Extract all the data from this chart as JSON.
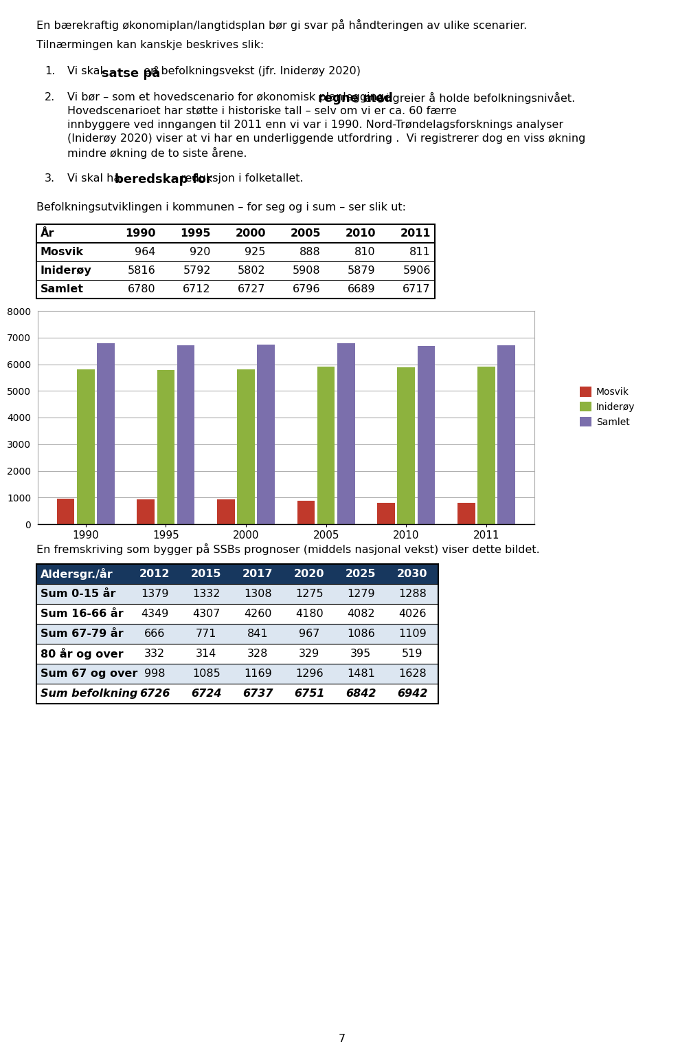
{
  "page_title_line1": "En bærekraftig økonomiplan/langtidsplan bør gi svar på håndteringen av ulike scenarier.",
  "page_title_line2": "Tilnærmingen kan kanskje beskrives slik:",
  "item1_pre": "Vi skal ",
  "item1_bold": "satse på",
  "item1_post": " en befolkningsvekst (jfr. Iniderøy 2020)",
  "item1_post_real": " en befolkningsvekst (jfr. Iniderøy 2020)",
  "item2_pre": "Vi bør – som et hovedscenario for økonomisk planlegging - ",
  "item2_bold": "regne med",
  "item2_line1_post": " at vi greier å holde befolkningssnivået.",
  "item2_line2": "befolkningsnivået. Hovedscenarioet har støtte i historiske tall – selv om vi er ca. 60 færre",
  "item2_line3": "innbyggere ved inngangen til 2011 enn vi var i 1990. Nord-Trøndelagsforsknings analyser",
  "item2_line4": "(Iniderøy 2020) viser at vi har en underliggende utfordring .  Vi registrerer dog en viss økning",
  "item2_line5": "mindre økning de to siste årene.",
  "item3_pre": "Vi skal ha ",
  "item3_bold": "beredskap for",
  "item3_post": " reduksjon i folketallet.",
  "mid_text": "Befolkningsutviklingen i kommunen – for seg og i sum – ser slik ut:",
  "table1_headers": [
    "År",
    "1990",
    "1995",
    "2000",
    "2005",
    "2010",
    "2011"
  ],
  "table1_rows": [
    [
      "Mosvik",
      "964",
      "920",
      "925",
      "888",
      "810",
      "811"
    ],
    [
      "Iniderøy",
      "5816",
      "5792",
      "5802",
      "5908",
      "5879",
      "5906"
    ],
    [
      "Samlet",
      "6780",
      "6712",
      "6727",
      "6796",
      "6689",
      "6717"
    ]
  ],
  "chart_years": [
    "1990",
    "1995",
    "2000",
    "2005",
    "2010",
    "2011"
  ],
  "mosvik": [
    964,
    920,
    925,
    888,
    810,
    811
  ],
  "inderoy": [
    5816,
    5792,
    5802,
    5908,
    5879,
    5906
  ],
  "samlet": [
    6780,
    6712,
    6727,
    6796,
    6689,
    6717
  ],
  "bar_color_mosvik": "#c0392b",
  "bar_color_inderoy": "#8db23e",
  "bar_color_samlet": "#7b6fac",
  "ylim": [
    0,
    8000
  ],
  "yticks": [
    0,
    1000,
    2000,
    3000,
    4000,
    5000,
    6000,
    7000,
    8000
  ],
  "bottom_intro": "En fremskriving som bygger på SSBs prognoser (middels nasjonal vekst) viser dette bildet.",
  "table2_headers": [
    "Aldersgr./år",
    "2012",
    "2015",
    "2017",
    "2020",
    "2025",
    "2030"
  ],
  "table2_rows": [
    [
      "Sum 0-15 år",
      "1379",
      "1332",
      "1308",
      "1275",
      "1279",
      "1288"
    ],
    [
      "Sum 16-66 år",
      "4349",
      "4307",
      "4260",
      "4180",
      "4082",
      "4026"
    ],
    [
      "Sum 67-79 år",
      "666",
      "771",
      "841",
      "967",
      "1086",
      "1109"
    ],
    [
      "80 år og over",
      "332",
      "314",
      "328",
      "329",
      "395",
      "519"
    ],
    [
      "Sum 67 og over",
      "998",
      "1085",
      "1169",
      "1296",
      "1481",
      "1628"
    ],
    [
      "Sum befolkning",
      "6726",
      "6724",
      "6737",
      "6751",
      "6842",
      "6942"
    ]
  ],
  "table2_italic_last": true,
  "page_number": "7",
  "bg_color": "#ffffff",
  "text_color": "#000000",
  "grid_color": "#b0b0b0",
  "table2_header_color": "#17375e"
}
